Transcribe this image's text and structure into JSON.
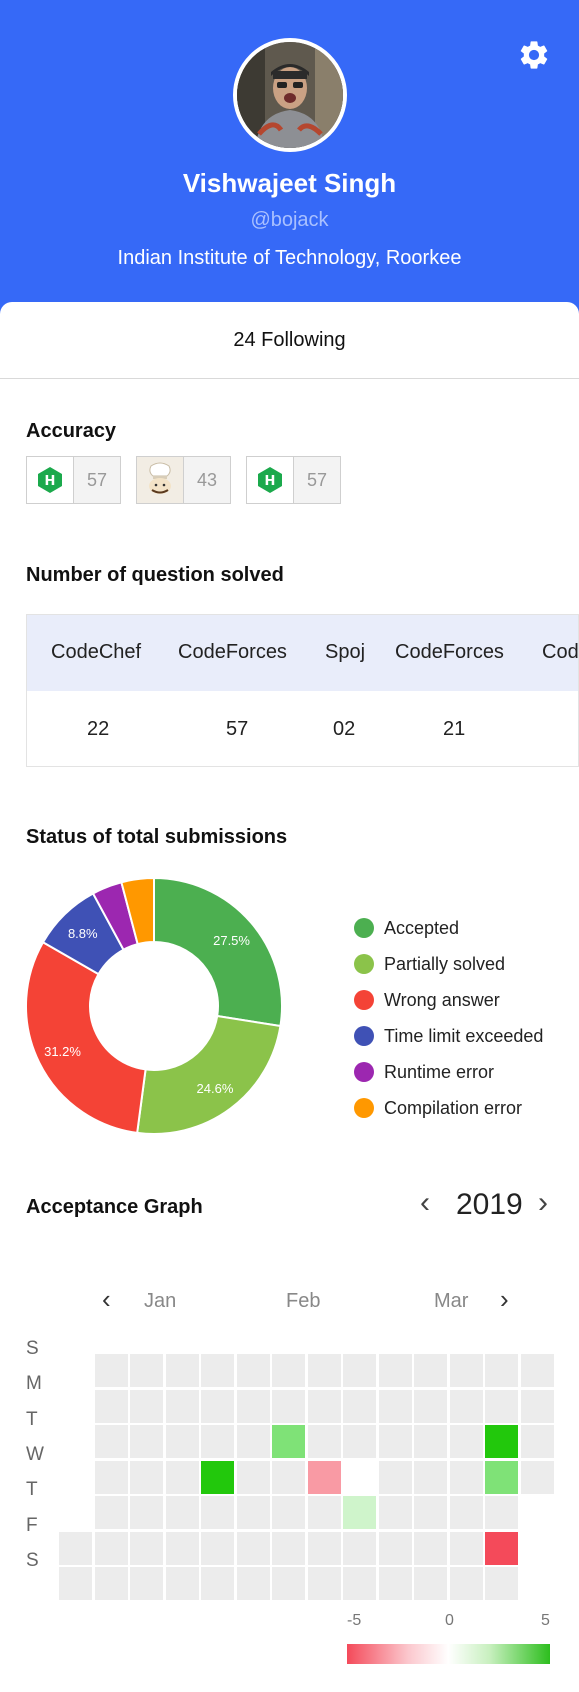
{
  "profile": {
    "name": "Vishwajeet Singh",
    "handle": "@bojack",
    "college": "Indian Institute of Technology, Roorkee",
    "following": "24 Following"
  },
  "accuracy": {
    "title": "Accuracy",
    "items": [
      {
        "icon": "hackerrank-icon",
        "value": "57"
      },
      {
        "icon": "codechef-icon",
        "value": "43"
      },
      {
        "icon": "hackerrank-icon",
        "value": "57"
      }
    ]
  },
  "questions": {
    "title": "Number of question solved",
    "headers": [
      "CodeChef",
      "CodeForces",
      "Spoj",
      "CodeForces",
      "Cod"
    ],
    "values": [
      "22",
      "57",
      "02",
      "21",
      ""
    ]
  },
  "submissions": {
    "title": "Status of total submissions",
    "legend": [
      "Accepted",
      "Partially solved",
      "Wrong answer",
      "Time limit exceeded",
      "Runtime error",
      "Compilation error"
    ],
    "colors": [
      "#4caf50",
      "#8bc34a",
      "#f44336",
      "#3f51b5",
      "#9c27b0",
      "#ff9800"
    ],
    "labels": [
      "27.5%",
      "24.6%",
      "31.2%",
      "8.8%"
    ]
  },
  "chart_data": {
    "type": "pie",
    "categories": [
      "Accepted",
      "Partially solved",
      "Wrong answer",
      "Time limit exceeded",
      "Runtime error",
      "Compilation error"
    ],
    "values": [
      27.5,
      24.6,
      31.2,
      8.8,
      3.8,
      4.1
    ],
    "title": "Status of total submissions"
  },
  "acceptance": {
    "title": "Acceptance Graph",
    "year": "2019",
    "months": [
      "Jan",
      "Feb",
      "Mar"
    ],
    "days": [
      "S",
      "M",
      "T",
      "W",
      "T",
      "F",
      "S"
    ],
    "scale": [
      "-5",
      "0",
      "5"
    ],
    "heatmap": [
      [
        null,
        0,
        0,
        0,
        0,
        0,
        0,
        0,
        0,
        0,
        0,
        0,
        0,
        0
      ],
      [
        null,
        0,
        0,
        0,
        0,
        0,
        0,
        0,
        0,
        0,
        0,
        0,
        0,
        0
      ],
      [
        null,
        0,
        0,
        0,
        0,
        0,
        3,
        0,
        0,
        0,
        0,
        0,
        5,
        0
      ],
      [
        null,
        0,
        0,
        0,
        5,
        0,
        0,
        -3,
        "blank",
        0,
        0,
        0,
        3,
        0
      ],
      [
        null,
        0,
        0,
        0,
        0,
        0,
        0,
        0,
        1,
        0,
        0,
        0,
        0,
        null
      ],
      [
        0,
        0,
        0,
        0,
        0,
        0,
        0,
        0,
        0,
        0,
        0,
        0,
        -4,
        null
      ],
      [
        0,
        0,
        0,
        0,
        0,
        0,
        0,
        0,
        0,
        0,
        0,
        0,
        0,
        null
      ]
    ]
  }
}
